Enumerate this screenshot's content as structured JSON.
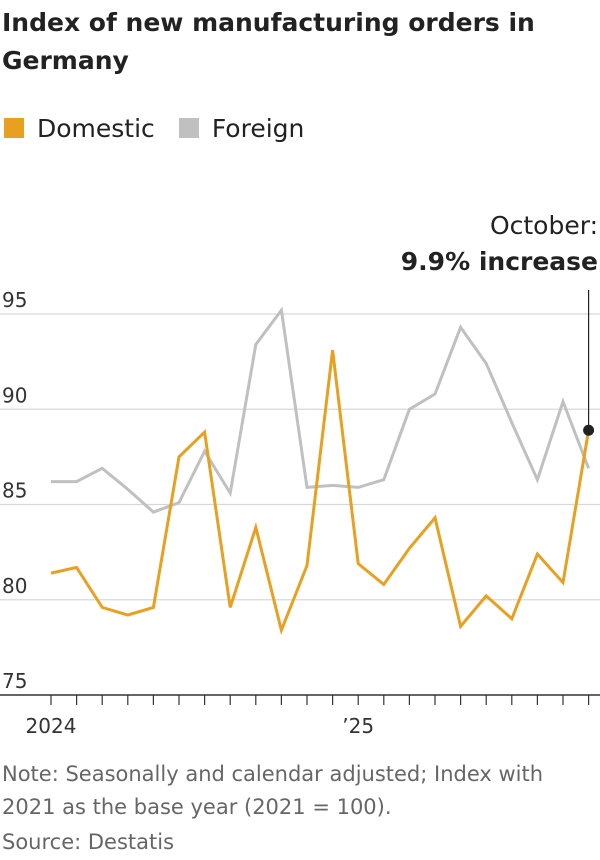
{
  "chart_data": {
    "type": "line",
    "title": "Index of new manufacturing orders in Germany",
    "legend_position": "top-left",
    "grid": true,
    "ylim": [
      75,
      96
    ],
    "yticks": [
      75,
      80,
      85,
      90,
      95
    ],
    "x": [
      "2024-01",
      "2024-02",
      "2024-03",
      "2024-04",
      "2024-05",
      "2024-06",
      "2024-07",
      "2024-08",
      "2024-09",
      "2024-10",
      "2024-11",
      "2024-12",
      "2025-01",
      "2025-02",
      "2025-03",
      "2025-04",
      "2025-05",
      "2025-06",
      "2025-07",
      "2025-08",
      "2025-09",
      "2025-10"
    ],
    "xtick_labels": [
      {
        "x": "2024-01",
        "label": "2024"
      },
      {
        "x": "2025-01",
        "label": "’25"
      }
    ],
    "series": [
      {
        "name": "Domestic",
        "color": "#e8a020",
        "values": [
          81.4,
          81.7,
          79.6,
          79.2,
          79.6,
          87.5,
          88.8,
          79.6,
          83.8,
          78.4,
          81.8,
          93.1,
          81.9,
          80.8,
          82.7,
          84.3,
          78.6,
          80.2,
          79.0,
          82.4,
          80.9,
          88.9
        ]
      },
      {
        "name": "Foreign",
        "color": "#c0c0c0",
        "values": [
          86.2,
          86.2,
          86.9,
          85.8,
          84.6,
          85.1,
          87.8,
          85.6,
          93.4,
          95.2,
          85.9,
          86.0,
          85.9,
          86.3,
          90.0,
          90.8,
          94.3,
          92.4,
          89.3,
          86.3,
          90.4,
          86.9
        ]
      }
    ],
    "annotation": {
      "x": "2025-10",
      "line1": "October:",
      "line2": "9.9% increase"
    },
    "note": "Note: Seasonally and calendar adjusted; Index with 2021 as the base year (2021 = 100).",
    "source": "Source: Destatis"
  }
}
